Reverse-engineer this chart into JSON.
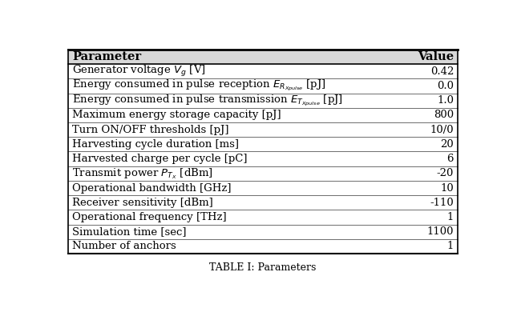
{
  "col_headers": [
    "Parameter",
    "Value"
  ],
  "rows": [
    [
      "Generator voltage $V_g$ [V]",
      "0.42"
    ],
    [
      "Energy consumed in pulse reception $E_{R_{Xpulse}}$ [pJ]",
      "0.0"
    ],
    [
      "Energy consumed in pulse transmission $E_{T_{Xpulse}}$ [pJ]",
      "1.0"
    ],
    [
      "Maximum energy storage capacity [pJ]",
      "800"
    ],
    [
      "Turn ON/OFF thresholds [pJ]",
      "10/0"
    ],
    [
      "Harvesting cycle duration [ms]",
      "20"
    ],
    [
      "Harvested charge per cycle [pC]",
      "6"
    ],
    [
      "Transmit power $P_{T_X}$ [dBm]",
      "-20"
    ],
    [
      "Operational bandwidth [GHz]",
      "10"
    ],
    [
      "Receiver sensitivity [dBm]",
      "-110"
    ],
    [
      "Operational frequency [THz]",
      "1"
    ],
    [
      "Simulation time [sec]",
      "1100"
    ],
    [
      "Number of anchors",
      "1"
    ]
  ],
  "header_bg": "#d8d8d8",
  "font_size": 9.5,
  "header_font_size": 10.5,
  "fig_width": 6.4,
  "fig_height": 3.9,
  "col_split": 0.78,
  "caption": "TABLE I: Parameters"
}
